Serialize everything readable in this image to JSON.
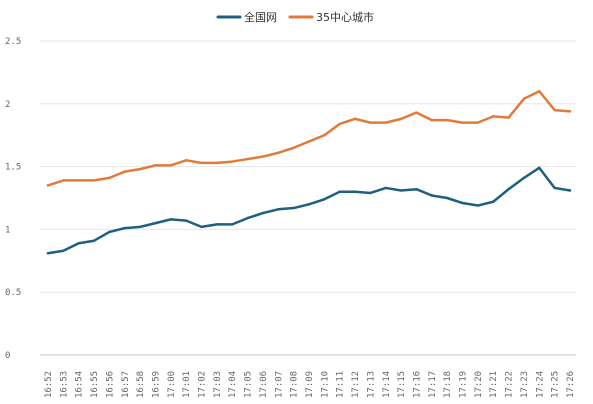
{
  "chart_data": {
    "type": "line",
    "title": "",
    "xlabel": "",
    "ylabel": "",
    "ylim": [
      0,
      2.5
    ],
    "yticks": [
      "0",
      "0.5",
      "1",
      "1.5",
      "2",
      "2.5"
    ],
    "ytick_values": [
      0,
      0.5,
      1,
      1.5,
      2,
      2.5
    ],
    "grid": "horizontal",
    "legend_position": "top-center",
    "categories": [
      "16:52",
      "16:53",
      "16:54",
      "16:55",
      "16:56",
      "16:57",
      "16:58",
      "16:59",
      "17:00",
      "17:01",
      "17:02",
      "17:03",
      "17:04",
      "17:05",
      "17:06",
      "17:07",
      "17:08",
      "17:09",
      "17:10",
      "17:11",
      "17:12",
      "17:13",
      "17:14",
      "17:15",
      "17:16",
      "17:17",
      "17:18",
      "17:19",
      "17:20",
      "17:21",
      "17:22",
      "17:23",
      "17:24",
      "17:25",
      "17:26"
    ],
    "series": [
      {
        "name": "全国网",
        "color": "#1f5f7f",
        "values": [
          0.81,
          0.83,
          0.89,
          0.91,
          0.98,
          1.01,
          1.02,
          1.05,
          1.08,
          1.07,
          1.02,
          1.04,
          1.04,
          1.09,
          1.13,
          1.16,
          1.17,
          1.2,
          1.24,
          1.3,
          1.3,
          1.29,
          1.33,
          1.31,
          1.32,
          1.27,
          1.25,
          1.21,
          1.19,
          1.22,
          1.32,
          1.41,
          1.49,
          1.33,
          1.31
        ]
      },
      {
        "name": "35中心城市",
        "color": "#e07b39",
        "values": [
          1.35,
          1.39,
          1.39,
          1.39,
          1.41,
          1.46,
          1.48,
          1.51,
          1.51,
          1.55,
          1.53,
          1.53,
          1.54,
          1.56,
          1.58,
          1.61,
          1.65,
          1.7,
          1.75,
          1.84,
          1.88,
          1.85,
          1.85,
          1.88,
          1.93,
          1.87,
          1.87,
          1.85,
          1.85,
          1.9,
          1.89,
          2.04,
          2.1,
          1.95,
          1.94
        ]
      }
    ]
  }
}
